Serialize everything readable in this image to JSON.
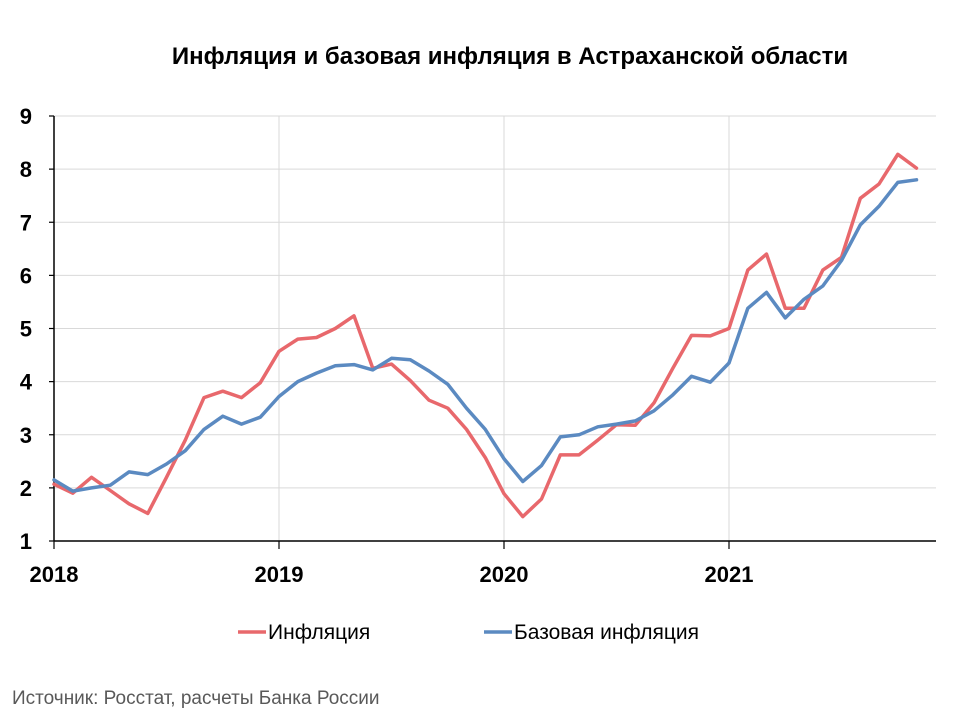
{
  "chart_data": {
    "type": "line",
    "title": "Инфляция и базовая инфляция в Астраханской области",
    "xlabel": "",
    "ylabel": "",
    "ylim": [
      1,
      9
    ],
    "yticks": [
      "1",
      "2",
      "3",
      "4",
      "5",
      "6",
      "7",
      "8",
      "9"
    ],
    "x_year_labels": [
      "2018",
      "2019",
      "2020",
      "2021"
    ],
    "grid": true,
    "legend_position": "bottom",
    "series": [
      {
        "name": "Инфляция",
        "color": "#e8686c",
        "values": [
          2.07,
          1.9,
          2.2,
          1.95,
          1.7,
          1.52,
          2.2,
          2.9,
          3.7,
          3.82,
          3.7,
          3.98,
          4.57,
          4.8,
          4.83,
          5.0,
          5.24,
          4.25,
          4.33,
          4.02,
          3.65,
          3.5,
          3.1,
          2.57,
          1.89,
          1.46,
          1.79,
          2.62,
          2.62,
          2.9,
          3.19,
          3.18,
          3.6,
          4.25,
          4.87,
          4.86,
          5.0,
          6.1,
          6.4,
          5.38,
          5.38,
          6.1,
          6.34,
          7.45,
          7.72,
          8.28,
          8.02
        ]
      },
      {
        "name": "Базовая инфляция",
        "color": "#5b8ac1",
        "values": [
          2.15,
          1.94,
          2.0,
          2.05,
          2.3,
          2.25,
          2.45,
          2.7,
          3.1,
          3.35,
          3.2,
          3.33,
          3.72,
          4.0,
          4.16,
          4.3,
          4.32,
          4.22,
          4.44,
          4.41,
          4.2,
          3.95,
          3.5,
          3.1,
          2.55,
          2.12,
          2.42,
          2.96,
          3.0,
          3.15,
          3.2,
          3.26,
          3.45,
          3.75,
          4.1,
          3.99,
          4.35,
          5.38,
          5.68,
          5.2,
          5.55,
          5.8,
          6.28,
          6.95,
          7.3,
          7.75,
          7.8
        ]
      }
    ]
  },
  "source_text": "Источник: Росстат, расчеты Банка России"
}
